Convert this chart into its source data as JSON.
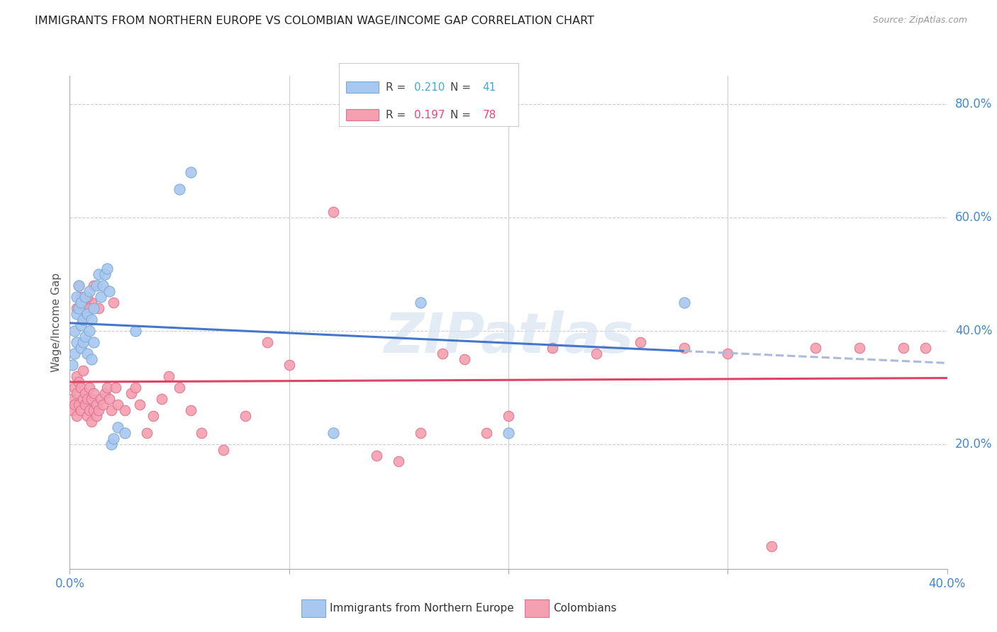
{
  "title": "IMMIGRANTS FROM NORTHERN EUROPE VS COLOMBIAN WAGE/INCOME GAP CORRELATION CHART",
  "source": "Source: ZipAtlas.com",
  "ylabel": "Wage/Income Gap",
  "right_yticks": [
    0.2,
    0.4,
    0.6,
    0.8
  ],
  "watermark": "ZIPatlas",
  "legend1_label": "Immigrants from Northern Europe",
  "legend2_label": "Colombians",
  "R1": "0.210",
  "N1": "41",
  "R2": "0.197",
  "N2": "78",
  "blue_scatter_color": "#A8C8F0",
  "blue_edge_color": "#7aaad4",
  "pink_scatter_color": "#F4A0B0",
  "pink_edge_color": "#e07090",
  "blue_line_color": "#4477CC",
  "pink_line_color": "#DD4466",
  "blue_dashed_color": "#AABBDD",
  "xlim": [
    0.0,
    0.4
  ],
  "ylim": [
    -0.02,
    0.85
  ],
  "blue_points_x": [
    0.001,
    0.002,
    0.002,
    0.003,
    0.003,
    0.003,
    0.004,
    0.004,
    0.005,
    0.005,
    0.005,
    0.006,
    0.006,
    0.007,
    0.007,
    0.008,
    0.008,
    0.009,
    0.009,
    0.01,
    0.01,
    0.011,
    0.011,
    0.012,
    0.013,
    0.014,
    0.015,
    0.016,
    0.017,
    0.018,
    0.019,
    0.02,
    0.022,
    0.025,
    0.03,
    0.05,
    0.055,
    0.12,
    0.16,
    0.2,
    0.28
  ],
  "blue_points_y": [
    0.34,
    0.36,
    0.4,
    0.38,
    0.43,
    0.46,
    0.44,
    0.48,
    0.37,
    0.41,
    0.45,
    0.38,
    0.42,
    0.39,
    0.46,
    0.36,
    0.43,
    0.4,
    0.47,
    0.35,
    0.42,
    0.38,
    0.44,
    0.48,
    0.5,
    0.46,
    0.48,
    0.5,
    0.51,
    0.47,
    0.2,
    0.21,
    0.23,
    0.22,
    0.4,
    0.65,
    0.68,
    0.22,
    0.45,
    0.22,
    0.45
  ],
  "pink_points_x": [
    0.001,
    0.001,
    0.002,
    0.002,
    0.003,
    0.003,
    0.003,
    0.004,
    0.004,
    0.005,
    0.005,
    0.006,
    0.006,
    0.007,
    0.007,
    0.008,
    0.008,
    0.009,
    0.009,
    0.01,
    0.01,
    0.011,
    0.011,
    0.012,
    0.012,
    0.013,
    0.014,
    0.015,
    0.016,
    0.017,
    0.018,
    0.019,
    0.02,
    0.021,
    0.022,
    0.025,
    0.028,
    0.03,
    0.032,
    0.035,
    0.038,
    0.042,
    0.045,
    0.05,
    0.055,
    0.06,
    0.07,
    0.08,
    0.09,
    0.1,
    0.12,
    0.14,
    0.15,
    0.16,
    0.17,
    0.18,
    0.19,
    0.2,
    0.22,
    0.24,
    0.26,
    0.28,
    0.3,
    0.32,
    0.34,
    0.36,
    0.38,
    0.39,
    0.01,
    0.003,
    0.004,
    0.005,
    0.006,
    0.007,
    0.008,
    0.009,
    0.011,
    0.013
  ],
  "pink_points_y": [
    0.28,
    0.26,
    0.27,
    0.3,
    0.25,
    0.29,
    0.32,
    0.27,
    0.31,
    0.26,
    0.3,
    0.28,
    0.33,
    0.27,
    0.29,
    0.25,
    0.28,
    0.26,
    0.3,
    0.24,
    0.28,
    0.26,
    0.29,
    0.25,
    0.27,
    0.26,
    0.28,
    0.27,
    0.29,
    0.3,
    0.28,
    0.26,
    0.45,
    0.3,
    0.27,
    0.26,
    0.29,
    0.3,
    0.27,
    0.22,
    0.25,
    0.28,
    0.32,
    0.3,
    0.26,
    0.22,
    0.19,
    0.25,
    0.38,
    0.34,
    0.61,
    0.18,
    0.17,
    0.22,
    0.36,
    0.35,
    0.22,
    0.25,
    0.37,
    0.36,
    0.38,
    0.37,
    0.36,
    0.02,
    0.37,
    0.37,
    0.37,
    0.37,
    0.45,
    0.44,
    0.48,
    0.46,
    0.42,
    0.44,
    0.46,
    0.44,
    0.48,
    0.44
  ]
}
